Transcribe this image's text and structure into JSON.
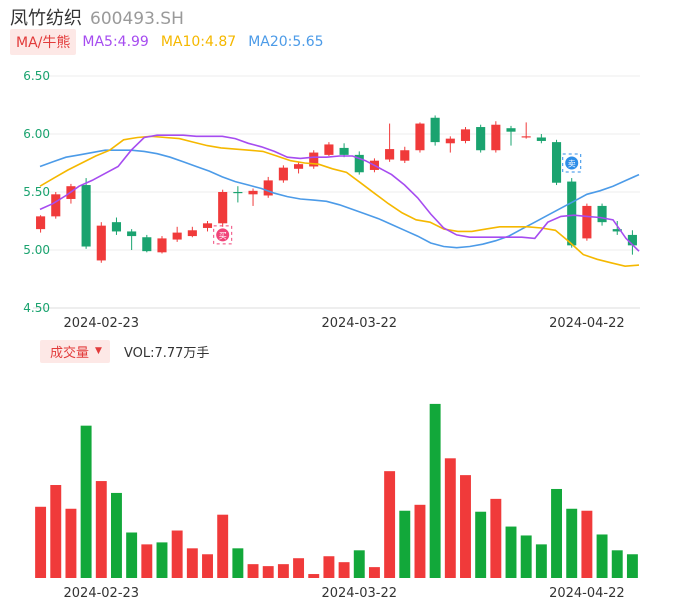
{
  "header": {
    "name": "凤竹纺织",
    "code": "600493.SH"
  },
  "ma_legend": {
    "badge": "MA/牛熊",
    "items": [
      {
        "label": "MA5:4.99",
        "color": "#a64cf0"
      },
      {
        "label": "MA10:4.87",
        "color": "#f5b800"
      },
      {
        "label": "MA20:5.65",
        "color": "#4c9be8"
      }
    ]
  },
  "volume_legend": {
    "badge": "成交量",
    "text": "VOL:7.77万手"
  },
  "icons": {
    "buy_marker": "buy-signal-icon",
    "sell_marker": "sell-signal-icon"
  },
  "colors": {
    "up": "#f03a3a",
    "down": "#1aa36f",
    "vol_down": "#12a83a"
  },
  "chart_data": [
    {
      "type": "candlestick",
      "ylim": [
        4.5,
        6.5
      ],
      "yticks": [
        "6.50",
        "6.00",
        "5.50",
        "5.00",
        "4.50"
      ],
      "xtick_labels": [
        {
          "index": 4,
          "label": "2024-02-23"
        },
        {
          "index": 21,
          "label": "2024-03-22"
        },
        {
          "index": 36,
          "label": "2024-04-22"
        }
      ],
      "markers": [
        {
          "index": 12,
          "type": "buy",
          "price": 5.13,
          "label": "买"
        },
        {
          "index": 35,
          "type": "sell",
          "price": 5.75,
          "label": "卖"
        }
      ],
      "ohlc": [
        [
          5.18,
          5.29,
          5.3,
          5.15
        ],
        [
          5.29,
          5.48,
          5.5,
          5.27
        ],
        [
          5.44,
          5.55,
          5.57,
          5.4
        ],
        [
          5.56,
          5.03,
          5.62,
          5.01
        ],
        [
          4.91,
          5.21,
          5.24,
          4.89
        ],
        [
          5.24,
          5.16,
          5.28,
          5.13
        ],
        [
          5.16,
          5.12,
          5.18,
          5.0
        ],
        [
          5.11,
          4.99,
          5.13,
          4.98
        ],
        [
          4.98,
          5.1,
          5.12,
          4.97
        ],
        [
          5.09,
          5.15,
          5.2,
          5.07
        ],
        [
          5.12,
          5.17,
          5.2,
          5.11
        ],
        [
          5.19,
          5.23,
          5.25,
          5.16
        ],
        [
          5.23,
          5.5,
          5.52,
          5.2
        ],
        [
          5.5,
          5.49,
          5.55,
          5.41
        ],
        [
          5.48,
          5.51,
          5.53,
          5.38
        ],
        [
          5.47,
          5.6,
          5.63,
          5.45
        ],
        [
          5.6,
          5.71,
          5.73,
          5.58
        ],
        [
          5.7,
          5.74,
          5.76,
          5.66
        ],
        [
          5.72,
          5.84,
          5.86,
          5.7
        ],
        [
          5.82,
          5.91,
          5.93,
          5.81
        ],
        [
          5.88,
          5.82,
          5.92,
          5.8
        ],
        [
          5.82,
          5.67,
          5.85,
          5.65
        ],
        [
          5.69,
          5.77,
          5.79,
          5.67
        ],
        [
          5.78,
          5.87,
          6.09,
          5.76
        ],
        [
          5.77,
          5.86,
          5.89,
          5.75
        ],
        [
          5.86,
          6.09,
          6.1,
          5.84
        ],
        [
          6.14,
          5.93,
          6.16,
          5.9
        ],
        [
          5.92,
          5.96,
          5.98,
          5.84
        ],
        [
          5.94,
          6.04,
          6.06,
          5.92
        ],
        [
          6.06,
          5.86,
          6.08,
          5.84
        ],
        [
          5.86,
          6.08,
          6.11,
          5.84
        ],
        [
          6.05,
          6.02,
          6.07,
          5.9
        ],
        [
          5.97,
          5.98,
          6.1,
          5.96
        ],
        [
          5.97,
          5.94,
          6.0,
          5.92
        ],
        [
          5.93,
          5.58,
          5.95,
          5.56
        ],
        [
          5.59,
          5.04,
          5.62,
          5.02
        ],
        [
          5.1,
          5.38,
          5.4,
          5.08
        ],
        [
          5.38,
          5.24,
          5.4,
          5.21
        ],
        [
          5.18,
          5.16,
          5.25,
          5.13
        ],
        [
          5.13,
          5.04,
          5.17,
          4.96
        ]
      ],
      "ma5": [
        5.35,
        5.4,
        5.47,
        5.55,
        5.6,
        5.66,
        5.72,
        5.86,
        5.97,
        5.99,
        5.99,
        5.99,
        5.98,
        5.98,
        5.98,
        5.96,
        5.92,
        5.89,
        5.85,
        5.8,
        5.79,
        5.8,
        5.8,
        5.81,
        5.81,
        5.77,
        5.71,
        5.65,
        5.56,
        5.45,
        5.31,
        5.19,
        5.13,
        5.11,
        5.11,
        5.11,
        5.11,
        5.11,
        5.1,
        5.24,
        5.29,
        5.3,
        5.29,
        5.28,
        5.26,
        5.1,
        4.99
      ],
      "ma10": [
        5.55,
        5.62,
        5.69,
        5.75,
        5.81,
        5.86,
        5.95,
        5.97,
        5.98,
        5.97,
        5.96,
        5.93,
        5.9,
        5.88,
        5.87,
        5.86,
        5.85,
        5.81,
        5.77,
        5.75,
        5.74,
        5.7,
        5.67,
        5.58,
        5.49,
        5.4,
        5.32,
        5.26,
        5.24,
        5.18,
        5.16,
        5.16,
        5.18,
        5.2,
        5.2,
        5.2,
        5.19,
        5.17,
        5.07,
        4.96,
        4.92,
        4.89,
        4.86,
        4.87
      ],
      "ma20": [
        5.72,
        5.76,
        5.8,
        5.82,
        5.84,
        5.86,
        5.86,
        5.86,
        5.85,
        5.83,
        5.8,
        5.76,
        5.72,
        5.68,
        5.63,
        5.59,
        5.56,
        5.53,
        5.49,
        5.46,
        5.44,
        5.43,
        5.42,
        5.39,
        5.35,
        5.31,
        5.27,
        5.22,
        5.17,
        5.12,
        5.06,
        5.03,
        5.02,
        5.03,
        5.05,
        5.08,
        5.12,
        5.18,
        5.24,
        5.3,
        5.36,
        5.42,
        5.48,
        5.51,
        5.55,
        5.6,
        5.65
      ]
    },
    {
      "type": "bar",
      "volume": [
        0.72,
        0.94,
        0.7,
        1.54,
        0.98,
        0.86,
        0.46,
        0.34,
        0.36,
        0.48,
        0.3,
        0.24,
        0.64,
        0.3,
        0.14,
        0.12,
        0.14,
        0.2,
        0.04,
        0.22,
        0.16,
        0.28,
        0.11,
        1.08,
        0.68,
        0.74,
        1.76,
        1.21,
        1.04,
        0.67,
        0.8,
        0.52,
        0.43,
        0.34,
        0.9,
        0.7,
        0.68,
        0.44,
        0.28,
        0.24
      ],
      "direction": [
        "up",
        "up",
        "up",
        "down",
        "up",
        "down",
        "down",
        "up",
        "down",
        "up",
        "up",
        "up",
        "up",
        "down",
        "up",
        "up",
        "up",
        "up",
        "up",
        "up",
        "up",
        "down",
        "up",
        "up",
        "down",
        "up",
        "down",
        "up",
        "up",
        "down",
        "up",
        "down",
        "down",
        "down",
        "down",
        "down",
        "up",
        "down",
        "down",
        "down"
      ]
    }
  ]
}
